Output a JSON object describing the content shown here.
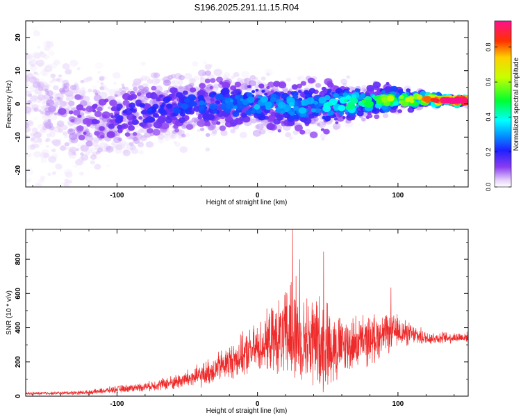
{
  "title": "S196.2025.291.11.15.R04",
  "chart_data": [
    {
      "type": "heatmap",
      "title": "S196.2025.291.11.15.R04",
      "xlabel": "Height of straight line (km)",
      "ylabel": "Frequency (Hz)",
      "xlim": [
        -165,
        150
      ],
      "ylim": [
        -25,
        25
      ],
      "xticks": [
        -100,
        0,
        100
      ],
      "yticks": [
        -20,
        -10,
        0,
        10,
        20
      ],
      "colorbar": {
        "label": "Normalized spectral amplitude",
        "range": [
          0,
          0.95
        ],
        "ticks": [
          0.0,
          0.2,
          0.4,
          0.6,
          0.8
        ]
      },
      "description_band": [
        {
          "x": -160,
          "center": 0,
          "spread": 22,
          "amp": 0.05
        },
        {
          "x": -120,
          "center": -5,
          "spread": 12,
          "amp": 0.12
        },
        {
          "x": -80,
          "center": -2,
          "spread": 9,
          "amp": 0.18
        },
        {
          "x": -40,
          "center": 0,
          "spread": 8,
          "amp": 0.22
        },
        {
          "x": 0,
          "center": 0,
          "spread": 7,
          "amp": 0.28
        },
        {
          "x": 40,
          "center": -1,
          "spread": 7,
          "amp": 0.3
        },
        {
          "x": 80,
          "center": 1,
          "spread": 4,
          "amp": 0.45
        },
        {
          "x": 120,
          "center": 1.5,
          "spread": 2,
          "amp": 0.65
        },
        {
          "x": 140,
          "center": 1,
          "spread": 1,
          "amp": 0.95
        }
      ]
    },
    {
      "type": "line",
      "xlabel": "Height of straight line (km)",
      "ylabel": "SNR (10 * v/v)",
      "xlim": [
        -165,
        150
      ],
      "ylim": [
        0,
        975
      ],
      "xticks": [
        -100,
        0,
        100
      ],
      "yticks": [
        0,
        200,
        400,
        600,
        800
      ],
      "color": "#ee2a2a",
      "envelope": {
        "x": [
          -165,
          -140,
          -120,
          -100,
          -80,
          -60,
          -40,
          -20,
          0,
          10,
          20,
          25,
          30,
          40,
          50,
          60,
          70,
          80,
          90,
          100,
          110,
          120,
          130,
          150
        ],
        "y_mean": [
          15,
          18,
          22,
          40,
          55,
          80,
          120,
          200,
          280,
          330,
          350,
          380,
          340,
          320,
          300,
          290,
          310,
          330,
          360,
          380,
          360,
          340,
          340,
          345
        ],
        "y_amp": [
          10,
          12,
          15,
          25,
          30,
          50,
          80,
          120,
          170,
          220,
          300,
          560,
          250,
          350,
          300,
          210,
          180,
          170,
          140,
          110,
          70,
          50,
          40,
          35
        ]
      },
      "peaks": [
        {
          "x": 25,
          "y": 975
        },
        {
          "x": 47,
          "y": 845
        },
        {
          "x": 30,
          "y": 800
        },
        {
          "x": 95,
          "y": 635
        }
      ]
    }
  ]
}
